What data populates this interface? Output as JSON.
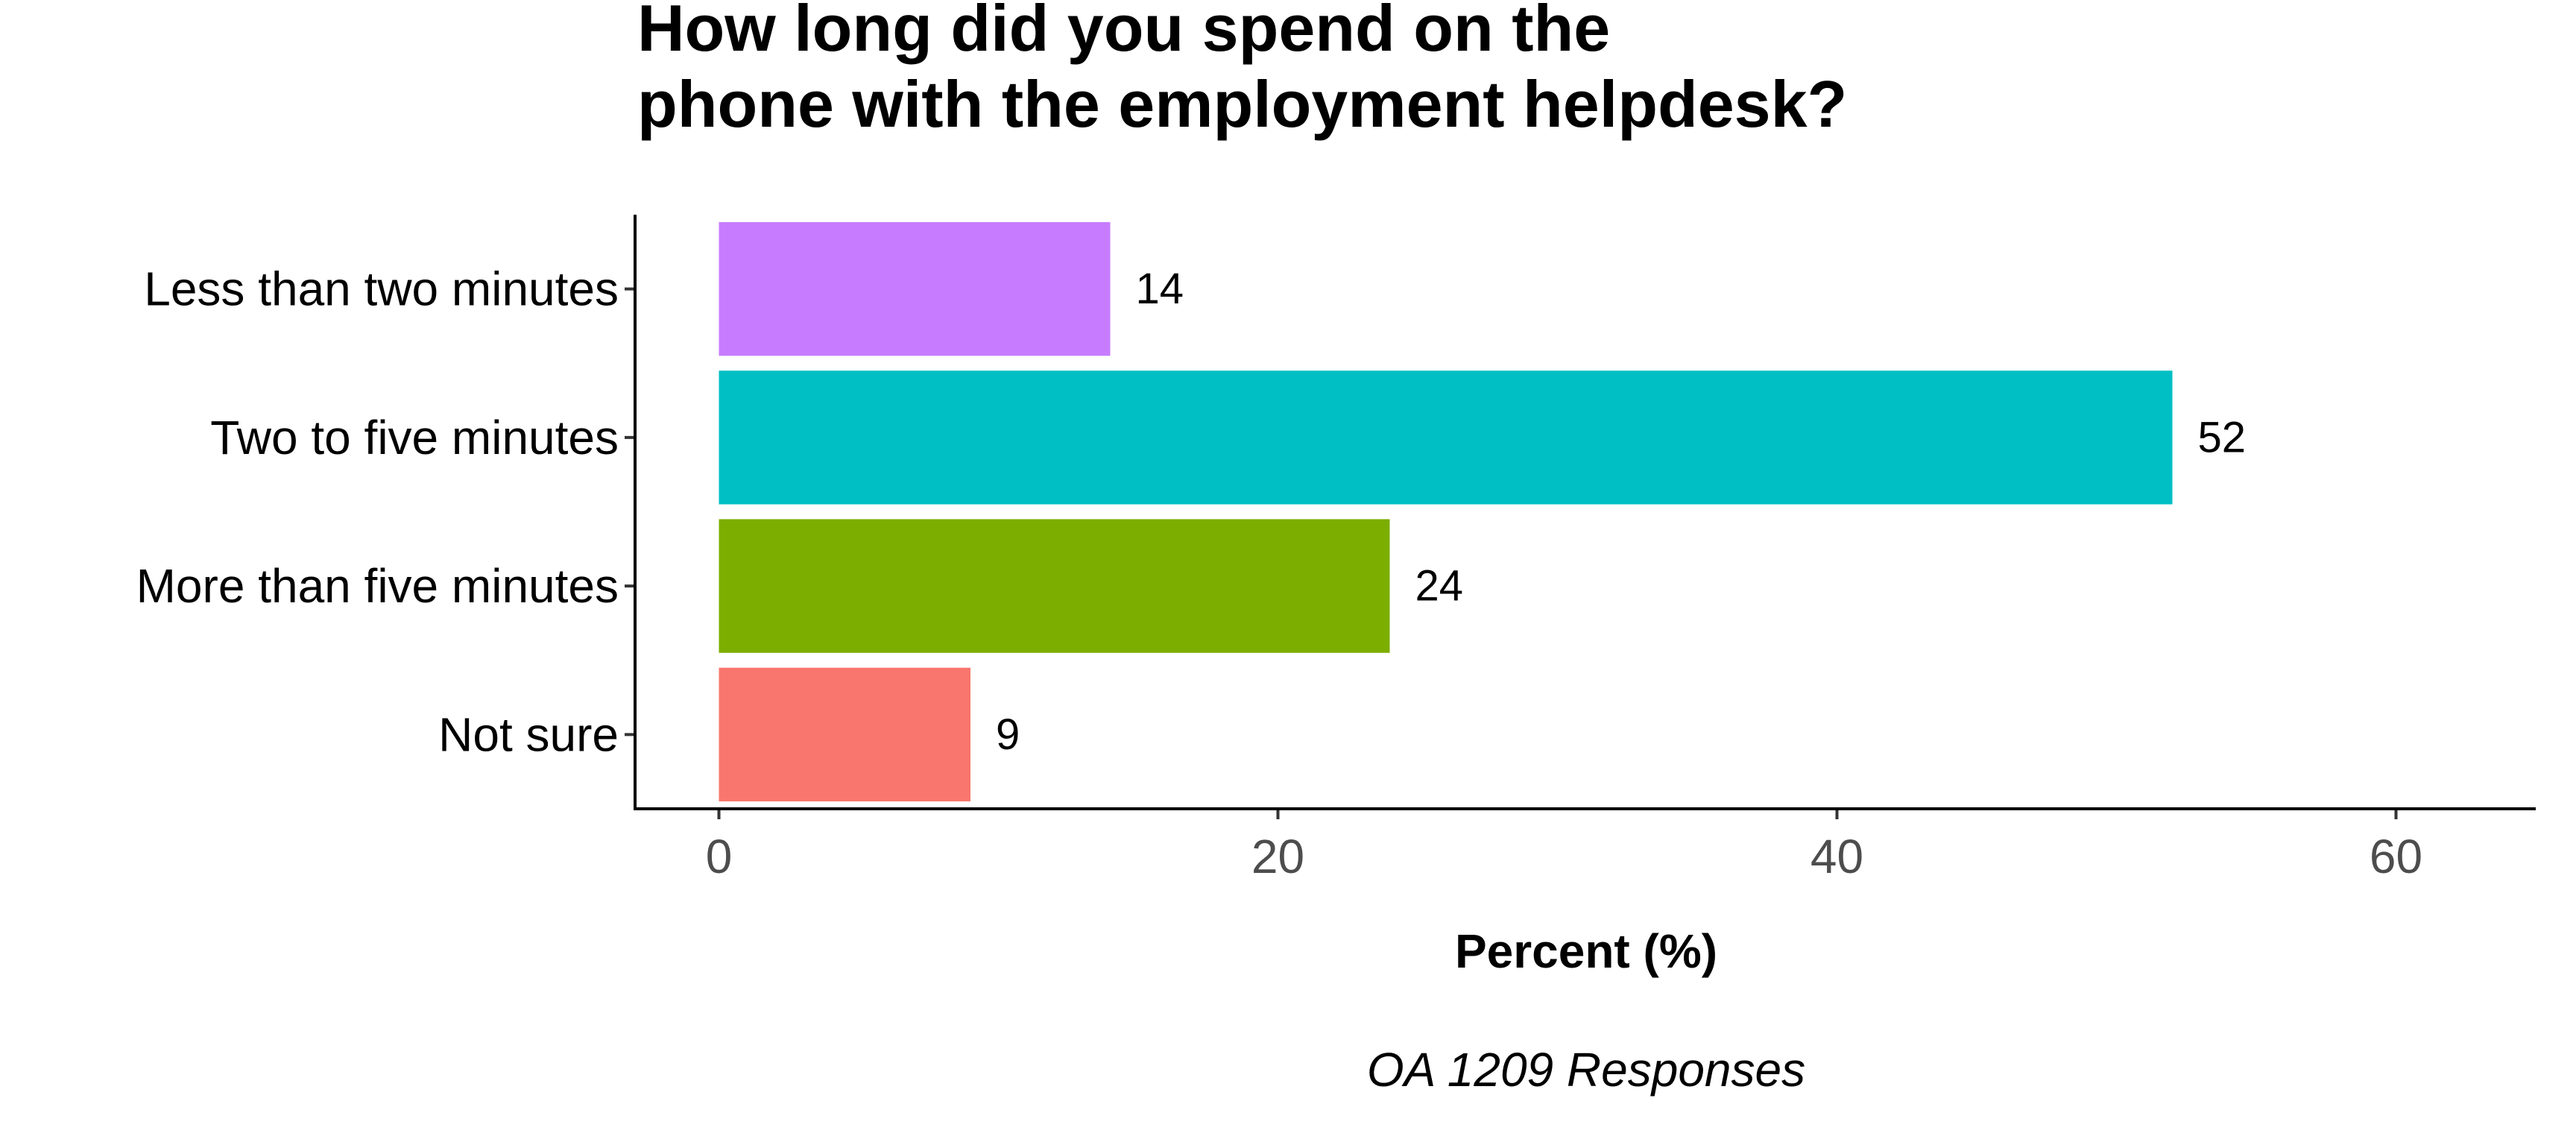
{
  "chart_data": {
    "type": "bar",
    "orientation": "horizontal",
    "title_lines": [
      "How long did you spend on the",
      "phone with the employment helpdesk?"
    ],
    "categories": [
      "Less than two minutes",
      "Two to five minutes",
      "More than five minutes",
      "Not sure"
    ],
    "values": [
      14,
      52,
      24,
      9
    ],
    "value_labels": [
      "14",
      "52",
      "24",
      "9"
    ],
    "colors": [
      "#C77CFF",
      "#00BFC4",
      "#7CAE00",
      "#F8766D"
    ],
    "xlabel": "Percent (%)",
    "caption": "OA 1209 Responses",
    "xlim": [
      -3,
      65
    ],
    "x_ticks": [
      0,
      20,
      40,
      60
    ],
    "x_tick_labels": [
      "0",
      "20",
      "40",
      "60"
    ],
    "grid": false,
    "legend": "none"
  }
}
